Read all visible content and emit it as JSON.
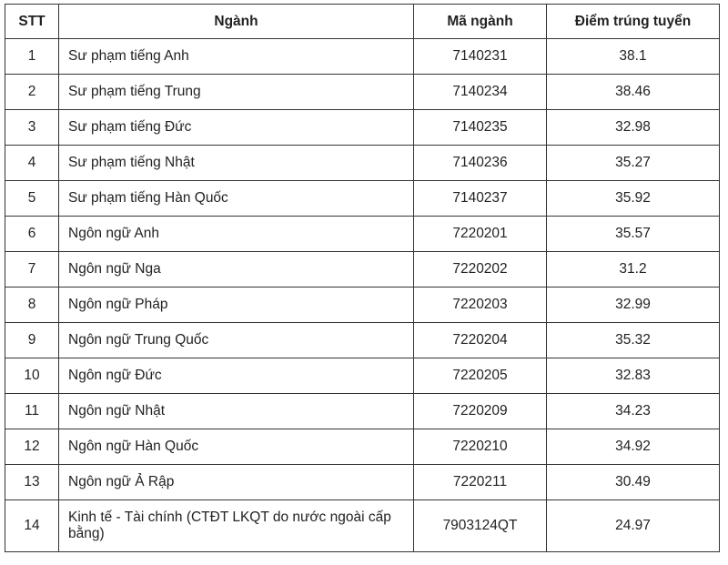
{
  "headers": [
    "STT",
    "Ngành",
    "Mã ngành",
    "Điểm trúng tuyển"
  ],
  "rows": [
    [
      "1",
      "Sư phạm tiếng Anh",
      "7140231",
      "38.1"
    ],
    [
      "2",
      "Sư phạm tiếng Trung",
      "7140234",
      "38.46"
    ],
    [
      "3",
      "Sư phạm tiếng Đức",
      "7140235",
      "32.98"
    ],
    [
      "4",
      "Sư phạm tiếng Nhật",
      "7140236",
      "35.27"
    ],
    [
      "5",
      "Sư phạm tiếng Hàn Quốc",
      "7140237",
      "35.92"
    ],
    [
      "6",
      "Ngôn ngữ Anh",
      "7220201",
      "35.57"
    ],
    [
      "7",
      "Ngôn ngữ Nga",
      "7220202",
      "31.2"
    ],
    [
      "8",
      "Ngôn ngữ Pháp",
      "7220203",
      "32.99"
    ],
    [
      "9",
      "Ngôn ngữ Trung Quốc",
      "7220204",
      "35.32"
    ],
    [
      "10",
      "Ngôn ngữ Đức",
      "7220205",
      "32.83"
    ],
    [
      "11",
      "Ngôn ngữ Nhật",
      "7220209",
      "34.23"
    ],
    [
      "12",
      "Ngôn ngữ Hàn Quốc",
      "7220210",
      "34.92"
    ],
    [
      "13",
      "Ngôn ngữ Ả Rập",
      "7220211",
      "30.49"
    ],
    [
      "14",
      "Kinh tế - Tài chính (CTĐT LKQT do nước ngoài cấp bằng)",
      "7903124QT",
      "24.97"
    ]
  ]
}
